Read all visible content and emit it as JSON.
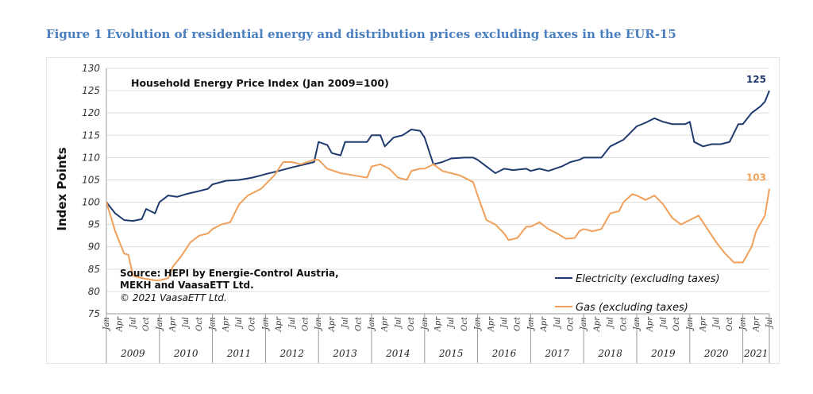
{
  "figure_caption": "Figure 1 Evolution of residential energy and distribution prices excluding taxes in the EUR-15",
  "colors": {
    "electricity": "#1f3a6e",
    "gas": "#f0a05a",
    "grid": "#dcdcdc",
    "caption": "#4a7fbf"
  },
  "chart_data": {
    "type": "line",
    "title": "Household Energy Price Index (Jan 2009=100)",
    "ylabel": "Index Points",
    "xlabel": "",
    "ylim": [
      75,
      130
    ],
    "yticks": [
      75,
      80,
      85,
      90,
      95,
      100,
      105,
      110,
      115,
      120,
      125,
      130
    ],
    "grid": true,
    "x_tick_labels": [
      "Jan",
      "Apr",
      "Jul",
      "Oct"
    ],
    "years": [
      "2009",
      "2010",
      "2011",
      "2012",
      "2013",
      "2014",
      "2015",
      "2016",
      "2017",
      "2018",
      "2019",
      "2020",
      "2021"
    ],
    "x_range": [
      "2009-01",
      "2021-07"
    ],
    "legend_position": "bottom-right",
    "source": "Source: HEPI by Energie-Control Austria,",
    "source_line2": "MEKH and VaasaETT Ltd.",
    "copyright": "© 2021 VaasaETT Ltd.",
    "series": [
      {
        "name": "Electricity (excluding taxes)",
        "end_label": "125",
        "points": [
          [
            "2009-01",
            100
          ],
          [
            "2009-03",
            97.5
          ],
          [
            "2009-05",
            96
          ],
          [
            "2009-07",
            95.8
          ],
          [
            "2009-09",
            96.2
          ],
          [
            "2009-10",
            98.5
          ],
          [
            "2009-12",
            97.5
          ],
          [
            "2010-01",
            100
          ],
          [
            "2010-03",
            101.5
          ],
          [
            "2010-05",
            101.2
          ],
          [
            "2010-07",
            101.8
          ],
          [
            "2010-10",
            102.5
          ],
          [
            "2010-12",
            103
          ],
          [
            "2011-01",
            104
          ],
          [
            "2011-04",
            104.8
          ],
          [
            "2011-07",
            105
          ],
          [
            "2011-10",
            105.5
          ],
          [
            "2011-12",
            106
          ],
          [
            "2012-01",
            106.3
          ],
          [
            "2012-04",
            107
          ],
          [
            "2012-07",
            107.8
          ],
          [
            "2012-10",
            108.5
          ],
          [
            "2012-12",
            109
          ],
          [
            "2013-01",
            113.5
          ],
          [
            "2013-03",
            112.8
          ],
          [
            "2013-04",
            111
          ],
          [
            "2013-06",
            110.5
          ],
          [
            "2013-07",
            113.5
          ],
          [
            "2013-10",
            113.5
          ],
          [
            "2013-12",
            113.5
          ],
          [
            "2014-01",
            115
          ],
          [
            "2014-03",
            115
          ],
          [
            "2014-04",
            112.5
          ],
          [
            "2014-06",
            114.5
          ],
          [
            "2014-08",
            115
          ],
          [
            "2014-10",
            116.3
          ],
          [
            "2014-12",
            116
          ],
          [
            "2015-01",
            114.5
          ],
          [
            "2015-03",
            108.5
          ],
          [
            "2015-05",
            109
          ],
          [
            "2015-07",
            109.8
          ],
          [
            "2015-10",
            110
          ],
          [
            "2015-12",
            110
          ],
          [
            "2016-01",
            109.5
          ],
          [
            "2016-03",
            108
          ],
          [
            "2016-05",
            106.5
          ],
          [
            "2016-07",
            107.5
          ],
          [
            "2016-09",
            107.2
          ],
          [
            "2016-12",
            107.5
          ],
          [
            "2017-01",
            107
          ],
          [
            "2017-03",
            107.5
          ],
          [
            "2017-05",
            107
          ],
          [
            "2017-08",
            108
          ],
          [
            "2017-10",
            109
          ],
          [
            "2017-12",
            109.5
          ],
          [
            "2018-01",
            110
          ],
          [
            "2018-03",
            110
          ],
          [
            "2018-05",
            110
          ],
          [
            "2018-07",
            112.5
          ],
          [
            "2018-10",
            114
          ],
          [
            "2018-12",
            116
          ],
          [
            "2019-01",
            117
          ],
          [
            "2019-03",
            117.8
          ],
          [
            "2019-05",
            118.8
          ],
          [
            "2019-07",
            118
          ],
          [
            "2019-09",
            117.5
          ],
          [
            "2019-12",
            117.5
          ],
          [
            "2020-01",
            118
          ],
          [
            "2020-02",
            113.5
          ],
          [
            "2020-04",
            112.5
          ],
          [
            "2020-06",
            113
          ],
          [
            "2020-08",
            113
          ],
          [
            "2020-10",
            113.5
          ],
          [
            "2020-12",
            117.5
          ],
          [
            "2021-01",
            117.5
          ],
          [
            "2021-03",
            120
          ],
          [
            "2021-05",
            121.5
          ],
          [
            "2021-06",
            122.5
          ],
          [
            "2021-07",
            125
          ]
        ]
      },
      {
        "name": "Gas (excluding taxes)",
        "end_label": "103",
        "points": [
          [
            "2009-01",
            100
          ],
          [
            "2009-03",
            93.5
          ],
          [
            "2009-05",
            88.5
          ],
          [
            "2009-06",
            88.2
          ],
          [
            "2009-07",
            83.5
          ],
          [
            "2009-09",
            83
          ],
          [
            "2009-12",
            82.5
          ],
          [
            "2010-01",
            82.5
          ],
          [
            "2010-03",
            83
          ],
          [
            "2010-04",
            85.5
          ],
          [
            "2010-06",
            88
          ],
          [
            "2010-08",
            91
          ],
          [
            "2010-10",
            92.5
          ],
          [
            "2010-12",
            93
          ],
          [
            "2011-01",
            94
          ],
          [
            "2011-03",
            95
          ],
          [
            "2011-05",
            95.5
          ],
          [
            "2011-07",
            99.5
          ],
          [
            "2011-09",
            101.5
          ],
          [
            "2011-12",
            103
          ],
          [
            "2012-01",
            104
          ],
          [
            "2012-03",
            106
          ],
          [
            "2012-05",
            109
          ],
          [
            "2012-07",
            109
          ],
          [
            "2012-09",
            108.5
          ],
          [
            "2012-12",
            109.5
          ],
          [
            "2013-01",
            109.5
          ],
          [
            "2013-03",
            107.5
          ],
          [
            "2013-06",
            106.5
          ],
          [
            "2013-09",
            106
          ],
          [
            "2013-12",
            105.5
          ],
          [
            "2014-01",
            108
          ],
          [
            "2014-03",
            108.5
          ],
          [
            "2014-05",
            107.5
          ],
          [
            "2014-07",
            105.5
          ],
          [
            "2014-09",
            105
          ],
          [
            "2014-10",
            107
          ],
          [
            "2014-12",
            107.5
          ],
          [
            "2015-01",
            107.5
          ],
          [
            "2015-03",
            108.5
          ],
          [
            "2015-05",
            107
          ],
          [
            "2015-07",
            106.5
          ],
          [
            "2015-09",
            106
          ],
          [
            "2015-12",
            104.5
          ],
          [
            "2016-01",
            101.5
          ],
          [
            "2016-03",
            96
          ],
          [
            "2016-05",
            95
          ],
          [
            "2016-07",
            93
          ],
          [
            "2016-08",
            91.5
          ],
          [
            "2016-10",
            92
          ],
          [
            "2016-12",
            94.5
          ],
          [
            "2017-01",
            94.5
          ],
          [
            "2017-03",
            95.5
          ],
          [
            "2017-05",
            94
          ],
          [
            "2017-07",
            93
          ],
          [
            "2017-09",
            91.8
          ],
          [
            "2017-11",
            92
          ],
          [
            "2017-12",
            93.5
          ],
          [
            "2018-01",
            94
          ],
          [
            "2018-03",
            93.5
          ],
          [
            "2018-05",
            94
          ],
          [
            "2018-07",
            97.5
          ],
          [
            "2018-09",
            98
          ],
          [
            "2018-10",
            100
          ],
          [
            "2018-12",
            101.8
          ],
          [
            "2019-01",
            101.5
          ],
          [
            "2019-03",
            100.5
          ],
          [
            "2019-05",
            101.5
          ],
          [
            "2019-07",
            99.5
          ],
          [
            "2019-09",
            96.5
          ],
          [
            "2019-11",
            95
          ],
          [
            "2019-12",
            95.5
          ],
          [
            "2020-01",
            96
          ],
          [
            "2020-03",
            97
          ],
          [
            "2020-05",
            94
          ],
          [
            "2020-07",
            91
          ],
          [
            "2020-09",
            88.5
          ],
          [
            "2020-11",
            86.5
          ],
          [
            "2020-12",
            86.5
          ],
          [
            "2021-01",
            86.5
          ],
          [
            "2021-03",
            90
          ],
          [
            "2021-04",
            93.5
          ],
          [
            "2021-06",
            97
          ],
          [
            "2021-07",
            103
          ]
        ]
      }
    ]
  }
}
